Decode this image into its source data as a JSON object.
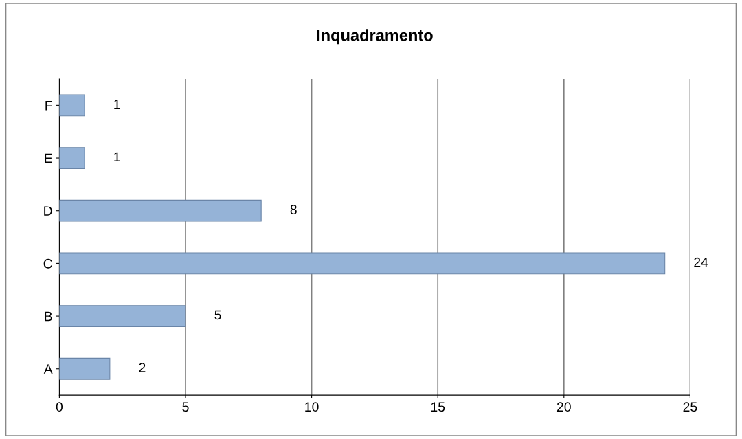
{
  "chart_data": {
    "type": "bar",
    "orientation": "horizontal",
    "title": "Inquadramento",
    "categories": [
      "F",
      "E",
      "D",
      "C",
      "B",
      "A"
    ],
    "values": [
      1,
      1,
      8,
      24,
      5,
      2
    ],
    "color": "#95b3d7",
    "xlim": [
      0,
      25
    ],
    "xticks": [
      0,
      5,
      10,
      15,
      20,
      25
    ],
    "grid": "x",
    "data_labels": true
  }
}
